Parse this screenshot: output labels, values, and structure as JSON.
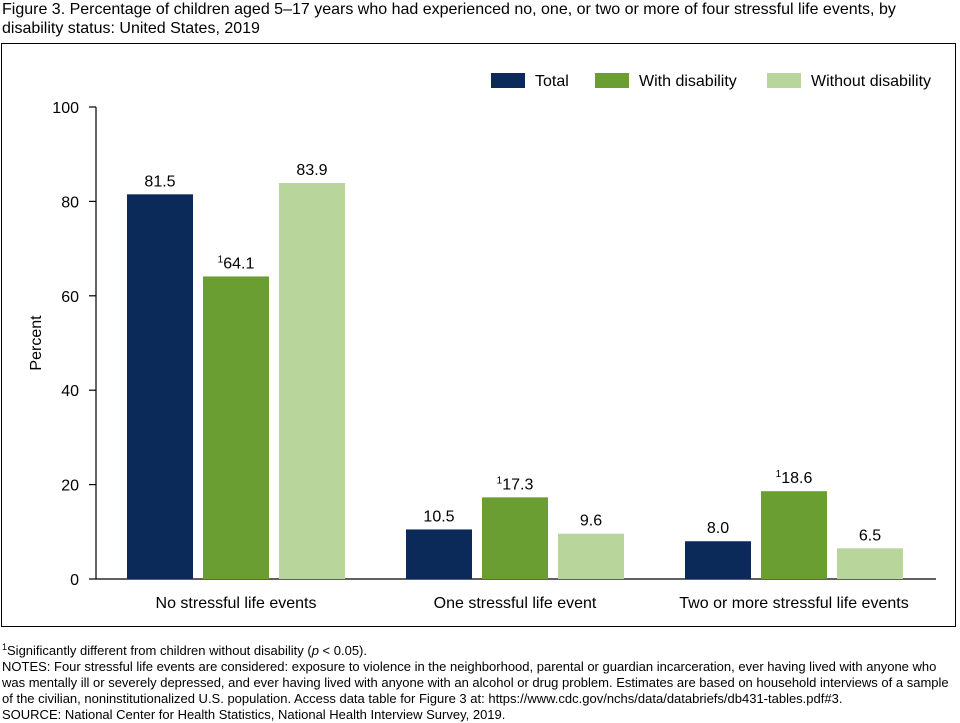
{
  "title": "Figure 3. Percentage of children aged 5–17 years who had experienced no, one, or two or more of four stressful life events, by disability status: United States, 2019",
  "chart_data": {
    "type": "bar",
    "categories": [
      "No stressful life events",
      "One stressful life event",
      "Two or more stressful life events"
    ],
    "series": [
      {
        "name": "Total",
        "values": [
          81.5,
          10.5,
          8.0
        ],
        "labels": [
          "81.5",
          "10.5",
          "8.0"
        ],
        "sup": [
          "",
          "",
          ""
        ],
        "color": "#0b2a59"
      },
      {
        "name": "With disability",
        "values": [
          64.1,
          17.3,
          18.6
        ],
        "labels": [
          "64.1",
          "17.3",
          "18.6"
        ],
        "sup": [
          "1",
          "1",
          "1"
        ],
        "color": "#6b9e32"
      },
      {
        "name": "Without disability",
        "values": [
          83.9,
          9.6,
          6.5
        ],
        "labels": [
          "83.9",
          "9.6",
          "6.5"
        ],
        "sup": [
          "",
          "",
          ""
        ],
        "color": "#b8d59b"
      }
    ],
    "ylabel": "Percent",
    "xlabel": "",
    "ylim": [
      0,
      100
    ],
    "yticks": [
      0,
      20,
      40,
      60,
      80,
      100
    ],
    "grid": false,
    "legend_position": "top-right"
  },
  "footnotes": {
    "sig_marker": "1",
    "sig_text_before": "Significantly different from children without disability (",
    "sig_p": "p",
    "sig_text_after": " < 0.05).",
    "notes": "NOTES: Four stressful life events are considered: exposure to violence in the neighborhood, parental or guardian incarceration, ever having lived with anyone who was mentally ill or severely depressed, and ever having lived with anyone with an alcohol or drug problem. Estimates are based on household interviews of a sample of the civilian, noninstitutionalized U.S. population. Access data table for Figure 3 at: https://www.cdc.gov/nchs/data/databriefs/db431-tables.pdf#3.",
    "source": "SOURCE: National Center for Health Statistics, National Health Interview Survey, 2019."
  }
}
